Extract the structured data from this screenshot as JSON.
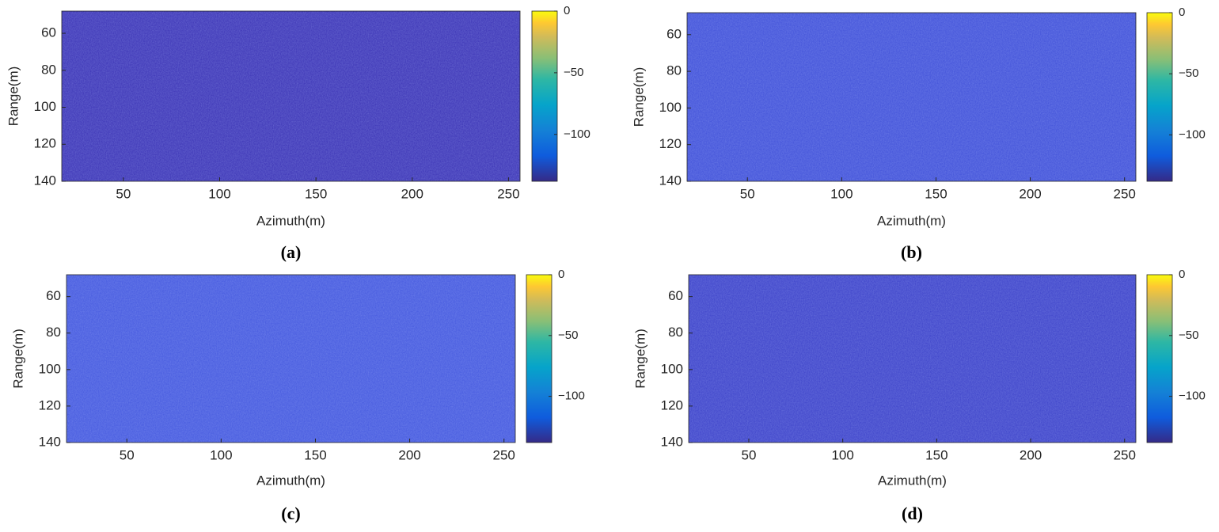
{
  "chart_data": [
    {
      "type": "heatmap",
      "label": "(a)",
      "xlabel": "Azimuth(m)",
      "ylabel": "Range(m)",
      "xlim": [
        18,
        256
      ],
      "xticks": [
        50,
        100,
        150,
        200,
        250
      ],
      "ylim": [
        140,
        48
      ],
      "yticks": [
        60,
        80,
        100,
        120,
        140
      ],
      "clim": [
        -138,
        0
      ],
      "cticks": [
        0,
        {
          "value": -50,
          "label": "−50"
        },
        {
          "value": -100,
          "label": "−100"
        }
      ],
      "color": "#3a31b4"
    },
    {
      "type": "heatmap",
      "label": "(b)",
      "xlabel": "Azimuth(m)",
      "ylabel": "Range(m)",
      "xlim": [
        18,
        256
      ],
      "xticks": [
        50,
        100,
        150,
        200,
        250
      ],
      "ylim": [
        140,
        48
      ],
      "yticks": [
        60,
        80,
        100,
        120,
        140
      ],
      "clim": [
        -138,
        0
      ],
      "cticks": [
        0,
        {
          "value": -50,
          "label": "−50"
        },
        {
          "value": -100,
          "label": "−100"
        }
      ],
      "color": "#3f4fd8"
    },
    {
      "type": "heatmap",
      "label": "(c)",
      "xlabel": "Azimuth(m)",
      "ylabel": "Range(m)",
      "xlim": [
        18,
        256
      ],
      "xticks": [
        50,
        100,
        150,
        200,
        250
      ],
      "ylim": [
        140,
        48
      ],
      "yticks": [
        60,
        80,
        100,
        120,
        140
      ],
      "clim": [
        -138,
        0
      ],
      "cticks": [
        0,
        {
          "value": -50,
          "label": "−50"
        },
        {
          "value": -100,
          "label": "−100"
        }
      ],
      "color": "#4357de"
    },
    {
      "type": "heatmap",
      "label": "(d)",
      "xlabel": "Azimuth(m)",
      "ylabel": "Range(m)",
      "xlim": [
        18,
        256
      ],
      "xticks": [
        50,
        100,
        150,
        200,
        250
      ],
      "ylim": [
        140,
        48
      ],
      "yticks": [
        60,
        80,
        100,
        120,
        140
      ],
      "clim": [
        -138,
        0
      ],
      "cticks": [
        0,
        {
          "value": -50,
          "label": "−50"
        },
        {
          "value": -100,
          "label": "−100"
        }
      ],
      "color": "#3b40c8"
    }
  ]
}
